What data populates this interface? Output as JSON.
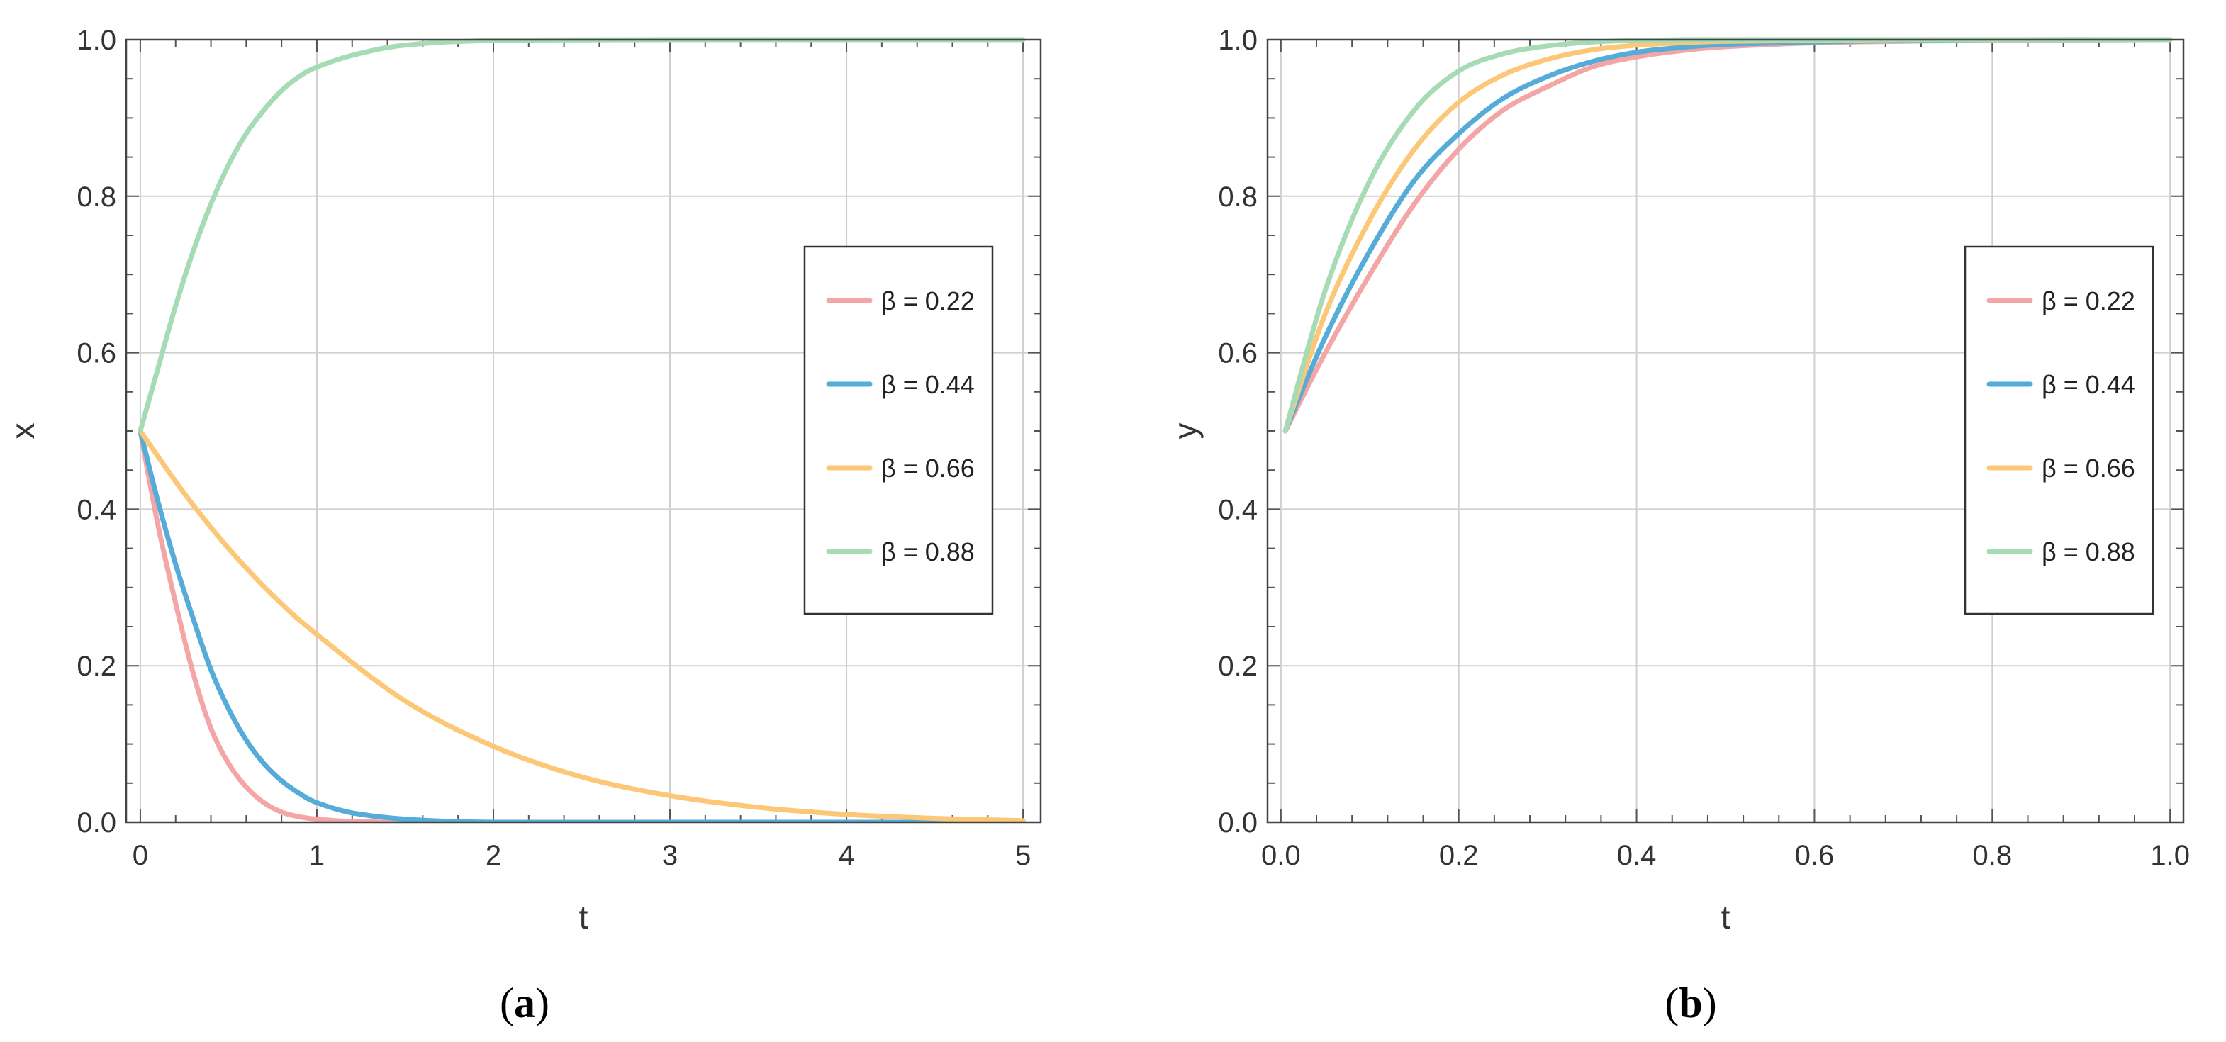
{
  "chart_data": [
    {
      "type": "line",
      "panel_label": "(a)",
      "panel_letter": "a",
      "xlabel": "t",
      "ylabel": "x",
      "xlim": [
        -0.08,
        5.1
      ],
      "ylim": [
        0,
        1
      ],
      "xticks": [
        0,
        1,
        2,
        3,
        4,
        5
      ],
      "yticks": [
        0.0,
        0.2,
        0.4,
        0.6,
        0.8,
        1.0
      ],
      "xtick_labels": [
        "0",
        "1",
        "2",
        "3",
        "4",
        "5"
      ],
      "ytick_labels": [
        "0.0",
        "0.2",
        "0.4",
        "0.6",
        "0.8",
        "1.0"
      ],
      "grid": true,
      "legend_position": "right",
      "series": [
        {
          "name": "β = 0.22",
          "color": "#f4a6a6",
          "x": [
            0,
            0.1,
            0.2,
            0.3,
            0.4,
            0.5,
            0.6,
            0.7,
            0.8,
            0.9,
            1.0,
            1.2,
            1.5,
            2,
            3,
            4,
            5
          ],
          "y": [
            0.5,
            0.38,
            0.28,
            0.19,
            0.12,
            0.075,
            0.045,
            0.025,
            0.013,
            0.007,
            0.004,
            0.001,
            0.0,
            0.0,
            0.0,
            0.0,
            0.0
          ]
        },
        {
          "name": "β = 0.44",
          "color": "#56acd8",
          "x": [
            0,
            0.1,
            0.2,
            0.3,
            0.4,
            0.5,
            0.6,
            0.7,
            0.8,
            0.9,
            1.0,
            1.2,
            1.5,
            2,
            3,
            4,
            5
          ],
          "y": [
            0.5,
            0.41,
            0.33,
            0.26,
            0.195,
            0.145,
            0.105,
            0.075,
            0.053,
            0.037,
            0.025,
            0.012,
            0.004,
            0.0,
            0.0,
            0.0,
            0.0
          ]
        },
        {
          "name": "β = 0.66",
          "color": "#fcc878",
          "x": [
            0,
            0.25,
            0.5,
            0.75,
            1.0,
            1.5,
            2.0,
            2.5,
            3.0,
            3.5,
            4.0,
            4.5,
            5.0
          ],
          "y": [
            0.5,
            0.42,
            0.35,
            0.29,
            0.24,
            0.155,
            0.097,
            0.058,
            0.034,
            0.019,
            0.01,
            0.005,
            0.002
          ]
        },
        {
          "name": "β = 0.88",
          "color": "#a6dbb6",
          "x": [
            0,
            0.1,
            0.2,
            0.3,
            0.4,
            0.5,
            0.6,
            0.7,
            0.8,
            0.9,
            1.0,
            1.2,
            1.5,
            2,
            3,
            4,
            5
          ],
          "y": [
            0.5,
            0.58,
            0.66,
            0.73,
            0.79,
            0.84,
            0.88,
            0.91,
            0.935,
            0.953,
            0.965,
            0.98,
            0.993,
            0.999,
            1.0,
            1.0,
            1.0
          ]
        }
      ]
    },
    {
      "type": "line",
      "panel_label": "(b)",
      "panel_letter": "b",
      "xlabel": "t",
      "ylabel": "y",
      "xlim": [
        -0.015,
        1.015
      ],
      "ylim": [
        0,
        1
      ],
      "xticks": [
        0.0,
        0.2,
        0.4,
        0.6,
        0.8,
        1.0
      ],
      "yticks": [
        0.0,
        0.2,
        0.4,
        0.6,
        0.8,
        1.0
      ],
      "xtick_labels": [
        "0.0",
        "0.2",
        "0.4",
        "0.6",
        "0.8",
        "1.0"
      ],
      "ytick_labels": [
        "0.0",
        "0.2",
        "0.4",
        "0.6",
        "0.8",
        "1.0"
      ],
      "grid": true,
      "legend_position": "right",
      "series": [
        {
          "name": "β = 0.22",
          "color": "#f4a6a6",
          "x": [
            0.005,
            0.05,
            0.1,
            0.15,
            0.2,
            0.25,
            0.3,
            0.35,
            0.4,
            0.45,
            0.5,
            0.6,
            0.7,
            0.8,
            1.0
          ],
          "y": [
            0.5,
            0.6,
            0.7,
            0.79,
            0.86,
            0.91,
            0.94,
            0.965,
            0.978,
            0.986,
            0.991,
            0.996,
            0.998,
            0.999,
            1.0
          ]
        },
        {
          "name": "β = 0.44",
          "color": "#56acd8",
          "x": [
            0.005,
            0.05,
            0.1,
            0.15,
            0.2,
            0.25,
            0.3,
            0.35,
            0.4,
            0.45,
            0.5,
            0.6,
            0.7,
            0.8,
            1.0
          ],
          "y": [
            0.5,
            0.62,
            0.73,
            0.82,
            0.88,
            0.925,
            0.953,
            0.972,
            0.984,
            0.99,
            0.994,
            0.997,
            0.999,
            1.0,
            1.0
          ]
        },
        {
          "name": "β = 0.66",
          "color": "#fcc878",
          "x": [
            0.005,
            0.05,
            0.1,
            0.15,
            0.2,
            0.25,
            0.3,
            0.35,
            0.4,
            0.45,
            0.5,
            0.6,
            0.7,
            0.8,
            1.0
          ],
          "y": [
            0.5,
            0.65,
            0.77,
            0.86,
            0.92,
            0.955,
            0.975,
            0.987,
            0.993,
            0.996,
            0.998,
            0.999,
            1.0,
            1.0,
            1.0
          ]
        },
        {
          "name": "β = 0.88",
          "color": "#a6dbb6",
          "x": [
            0.005,
            0.05,
            0.1,
            0.15,
            0.2,
            0.25,
            0.3,
            0.35,
            0.4,
            0.45,
            0.5,
            0.6,
            0.7,
            0.8,
            1.0
          ],
          "y": [
            0.5,
            0.68,
            0.82,
            0.91,
            0.96,
            0.982,
            0.992,
            0.997,
            0.999,
            1.0,
            1.0,
            1.0,
            1.0,
            1.0,
            1.0
          ]
        }
      ]
    }
  ]
}
